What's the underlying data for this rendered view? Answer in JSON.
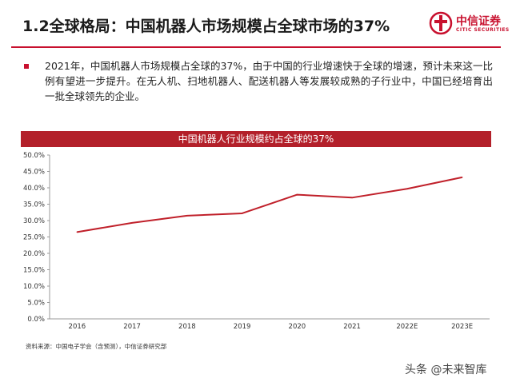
{
  "header": {
    "title": "1.2全球格局：中国机器人市场规模占全球市场的37%",
    "logo_cn": "中信证券",
    "logo_en": "CITIC SECURITIES"
  },
  "body": {
    "paragraph": "2021年，中国机器人市场规模占全球的37%，由于中国的行业增速快于全球的增速，预计未来这一比例有望进一步提升。在无人机、扫地机器人、配送机器人等发展较成熟的子行业中，中国已经培育出一批全球领先的企业。"
  },
  "chart_data": {
    "type": "line",
    "title": "中国机器人行业规模约占全球的37%",
    "xlabel": "",
    "ylabel": "",
    "x": [
      "2016",
      "2017",
      "2018",
      "2019",
      "2020",
      "2021",
      "2022E",
      "2023E"
    ],
    "series": [
      {
        "values": [
          26.5,
          29.3,
          31.5,
          32.2,
          37.9,
          37.0,
          39.7,
          43.2
        ]
      }
    ],
    "y_ticks": [
      "0.0%",
      "5.0%",
      "10.0%",
      "15.0%",
      "20.0%",
      "25.0%",
      "30.0%",
      "35.0%",
      "40.0%",
      "45.0%",
      "50.0%"
    ],
    "ylim": [
      0,
      50
    ],
    "grid": false,
    "line_color": "#c0202a"
  },
  "footer": {
    "source": "资料来源：中国电子学会（含预测），中信证券研究部",
    "watermark": "头条 @未来智库"
  }
}
